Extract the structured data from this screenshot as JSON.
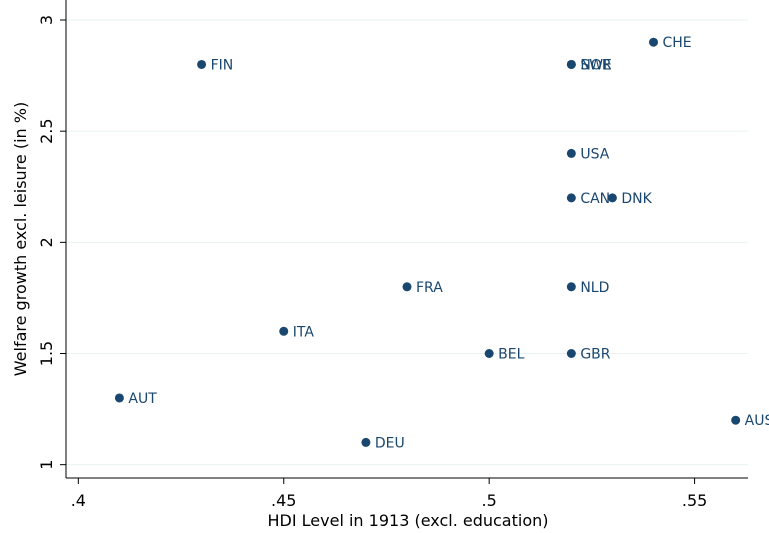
{
  "chart_data": {
    "type": "scatter",
    "x_label": "HDI Level in 1913 (excl. education)",
    "y_label": "Welfare growth excl. leisure (in %)",
    "labels": [
      "FIN",
      "SWE",
      "NOR",
      "CHE",
      "USA",
      "CAN",
      "DNK",
      "FRA",
      "NLD",
      "ITA",
      "BEL",
      "GBR",
      "AUT",
      "DEU",
      "AUS"
    ],
    "x": [
      0.43,
      0.52,
      0.52,
      0.54,
      0.52,
      0.52,
      0.53,
      0.48,
      0.52,
      0.45,
      0.5,
      0.52,
      0.41,
      0.47,
      0.56
    ],
    "y": [
      2.8,
      2.8,
      2.8,
      2.9,
      2.4,
      2.2,
      2.2,
      1.8,
      1.8,
      1.6,
      1.5,
      1.5,
      1.3,
      1.1,
      1.2
    ],
    "color": "#1a476f",
    "xlim": [
      0.397,
      0.563
    ],
    "ylim": [
      0.94,
      3.09
    ],
    "xticks": [
      {
        "value": 0.4,
        "label": ".4"
      },
      {
        "value": 0.45,
        "label": ".45"
      },
      {
        "value": 0.5,
        "label": ".5"
      },
      {
        "value": 0.55,
        "label": ".55"
      }
    ],
    "yticks": [
      1,
      1.5,
      2,
      2.5,
      3
    ],
    "grid": true
  }
}
